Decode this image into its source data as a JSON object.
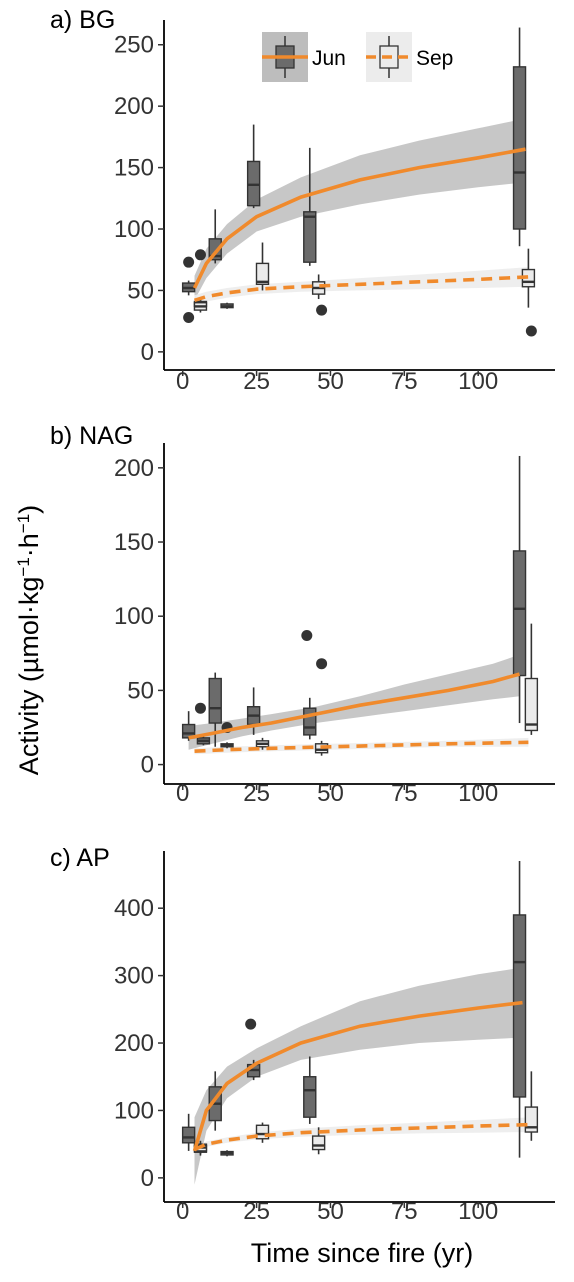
{
  "figure": {
    "ylabel": "Activity (µmol·kg⁻¹·h⁻¹)",
    "xlabel": "Time since fire (yr)"
  },
  "legend": {
    "items": [
      {
        "label": "Jun",
        "line_style": "solid",
        "box_fill": "#6b6b6b"
      },
      {
        "label": "Sep",
        "line_style": "dashed",
        "box_fill": "#ebebeb"
      }
    ]
  },
  "colors": {
    "fit_line": "#f08a2c",
    "jun_box_fill": "#6b6b6b",
    "sep_box_fill": "#ebebeb",
    "jun_band": "#bdbdbd",
    "sep_band": "#ececec",
    "outlier": "#333333",
    "box_edge": "#333333"
  },
  "chart_data": [
    {
      "type": "box",
      "panel_label": "a) BG",
      "title": "a) BG",
      "xlabel": "",
      "ylabel": "Activity (µmol·kg⁻¹·h⁻¹)",
      "xlim": [
        -6,
        126
      ],
      "ylim": [
        -5,
        262
      ],
      "x_ticks": [
        0,
        25,
        50,
        75,
        100
      ],
      "y_ticks": [
        0,
        50,
        100,
        150,
        200,
        250
      ],
      "grid": false,
      "legend_position": "top-center",
      "series": [
        {
          "name": "Jun",
          "line": "solid",
          "boxes": [
            {
              "x": 2,
              "low": 46,
              "q1": 49,
              "median": 52,
              "q3": 56,
              "high": 58
            },
            {
              "x": 6,
              "low": 34,
              "q1": 37,
              "median": 38,
              "q3": 41,
              "high": 43
            },
            {
              "x": 11,
              "low": 72,
              "q1": 75,
              "median": 78,
              "q3": 92,
              "high": 116
            },
            {
              "x": 15,
              "low": 35,
              "q1": 36,
              "median": 37,
              "q3": 39,
              "high": 40
            },
            {
              "x": 24,
              "low": 117,
              "q1": 119,
              "median": 136,
              "q3": 155,
              "high": 185
            },
            {
              "x": 43,
              "low": 70,
              "q1": 73,
              "median": 110,
              "q3": 114,
              "high": 166
            },
            {
              "x": 114,
              "low": 86,
              "q1": 100,
              "median": 146,
              "q3": 232,
              "high": 264
            }
          ],
          "outliers": [
            {
              "x": 2,
              "y": 73
            },
            {
              "x": 6,
              "y": 79
            },
            {
              "x": 2,
              "y": 28
            }
          ],
          "fit": {
            "x": [
              4,
              8,
              15,
              25,
              40,
              60,
              80,
              100,
              116
            ],
            "y": [
              52,
              72,
              92,
              110,
              126,
              140,
              150,
              158,
              165
            ],
            "lower": [
              42,
              60,
              80,
              98,
              110,
              120,
              128,
              134,
              138
            ],
            "upper": [
              62,
              84,
              104,
              124,
              142,
              160,
              172,
              182,
              190
            ]
          }
        },
        {
          "name": "Sep",
          "line": "dashed",
          "boxes": [
            {
              "x": 6,
              "low": 32,
              "q1": 34,
              "median": 37,
              "q3": 40,
              "high": 43
            },
            {
              "x": 27,
              "low": 50,
              "q1": 55,
              "median": 57,
              "q3": 72,
              "high": 89
            },
            {
              "x": 46,
              "low": 43,
              "q1": 47,
              "median": 52,
              "q3": 57,
              "high": 63
            },
            {
              "x": 117,
              "low": 36,
              "q1": 53,
              "median": 57,
              "q3": 67,
              "high": 84
            }
          ],
          "outliers": [
            {
              "x": 47,
              "y": 34
            },
            {
              "x": 118,
              "y": 17
            }
          ],
          "fit": {
            "x": [
              4,
              8,
              15,
              25,
              40,
              60,
              80,
              100,
              117
            ],
            "y": [
              42,
              45,
              48,
              51,
              53,
              55,
              57,
              59,
              61
            ],
            "lower": [
              38,
              41,
              44,
              47,
              49,
              50,
              51,
              52,
              53
            ],
            "upper": [
              46,
              49,
              52,
              55,
              57,
              60,
              63,
              66,
              69
            ]
          }
        }
      ]
    },
    {
      "type": "box",
      "panel_label": "b) NAG",
      "title": "b) NAG",
      "xlabel": "",
      "ylabel": "Activity (µmol·kg⁻¹·h⁻¹)",
      "xlim": [
        -6,
        126
      ],
      "ylim": [
        -5,
        210
      ],
      "x_ticks": [
        0,
        25,
        50,
        75,
        100
      ],
      "y_ticks": [
        0,
        50,
        100,
        150,
        200
      ],
      "grid": false,
      "series": [
        {
          "name": "Jun",
          "line": "solid",
          "boxes": [
            {
              "x": 2,
              "low": 16,
              "q1": 18,
              "median": 21,
              "q3": 27,
              "high": 36
            },
            {
              "x": 7,
              "low": 13,
              "q1": 14,
              "median": 16,
              "q3": 18,
              "high": 20
            },
            {
              "x": 11,
              "low": 12,
              "q1": 28,
              "median": 38,
              "q3": 58,
              "high": 62
            },
            {
              "x": 15,
              "low": 11,
              "q1": 12,
              "median": 13,
              "q3": 14,
              "high": 15
            },
            {
              "x": 24,
              "low": 20,
              "q1": 27,
              "median": 33,
              "q3": 39,
              "high": 52
            },
            {
              "x": 43,
              "low": 17,
              "q1": 20,
              "median": 25,
              "q3": 38,
              "high": 45
            },
            {
              "x": 114,
              "low": 28,
              "q1": 60,
              "median": 105,
              "q3": 144,
              "high": 208
            }
          ],
          "outliers": [
            {
              "x": 6,
              "y": 38
            },
            {
              "x": 15,
              "y": 25
            },
            {
              "x": 42,
              "y": 87
            },
            {
              "x": 47,
              "y": 68
            }
          ],
          "fit": {
            "x": [
              2,
              10,
              20,
              30,
              45,
              60,
              75,
              90,
              105,
              114
            ],
            "y": [
              18,
              21,
              25,
              28,
              34,
              40,
              45,
              50,
              56,
              61
            ],
            "lower": [
              10,
              14,
              19,
              23,
              28,
              32,
              36,
              40,
              44,
              46
            ],
            "upper": [
              26,
              28,
              31,
              34,
              39,
              46,
              54,
              61,
              68,
              74
            ]
          }
        },
        {
          "name": "Sep",
          "line": "dashed",
          "boxes": [
            {
              "x": 27,
              "low": 10,
              "q1": 12,
              "median": 14,
              "q3": 16,
              "high": 18
            },
            {
              "x": 47,
              "low": 6,
              "q1": 8,
              "median": 10,
              "q3": 14,
              "high": 16
            },
            {
              "x": 118,
              "low": 20,
              "q1": 23,
              "median": 27,
              "q3": 58,
              "high": 95
            }
          ],
          "outliers": [],
          "fit": {
            "x": [
              4,
              15,
              30,
              50,
              70,
              90,
              117
            ],
            "y": [
              9,
              10,
              11,
              12,
              13,
              14,
              15
            ],
            "lower": [
              7,
              8,
              9,
              10,
              11,
              12,
              12
            ],
            "upper": [
              11,
              12,
              13,
              14,
              15,
              16,
              18
            ]
          }
        }
      ]
    },
    {
      "type": "box",
      "panel_label": "c) AP",
      "title": "c) AP",
      "xlabel": "Time since fire (yr)",
      "ylabel": "Activity (µmol·kg⁻¹·h⁻¹)",
      "xlim": [
        -6,
        126
      ],
      "ylim": [
        -18,
        470
      ],
      "x_ticks": [
        0,
        25,
        50,
        75,
        100
      ],
      "y_ticks": [
        0,
        100,
        200,
        300,
        400
      ],
      "grid": false,
      "series": [
        {
          "name": "Jun",
          "line": "solid",
          "boxes": [
            {
              "x": 2,
              "low": 40,
              "q1": 52,
              "median": 60,
              "q3": 75,
              "high": 95
            },
            {
              "x": 6,
              "low": 33,
              "q1": 38,
              "median": 43,
              "q3": 50,
              "high": 55
            },
            {
              "x": 11,
              "low": 70,
              "q1": 85,
              "median": 110,
              "q3": 135,
              "high": 158
            },
            {
              "x": 15,
              "low": 32,
              "q1": 34,
              "median": 37,
              "q3": 39,
              "high": 41
            },
            {
              "x": 24,
              "low": 145,
              "q1": 150,
              "median": 160,
              "q3": 168,
              "high": 175
            },
            {
              "x": 43,
              "low": 80,
              "q1": 90,
              "median": 130,
              "q3": 150,
              "high": 180
            },
            {
              "x": 114,
              "low": 30,
              "q1": 120,
              "median": 320,
              "q3": 390,
              "high": 470
            }
          ],
          "outliers": [
            {
              "x": 23,
              "y": 228
            }
          ],
          "fit": {
            "x": [
              4,
              8,
              15,
              25,
              40,
              60,
              80,
              100,
              115
            ],
            "y": [
              40,
              100,
              140,
              170,
              200,
              225,
              240,
              252,
              260
            ],
            "lower": [
              -10,
              70,
              118,
              150,
              175,
              190,
              200,
              205,
              208
            ],
            "upper": [
              90,
              130,
              165,
              192,
              225,
              262,
              285,
              302,
              312
            ]
          }
        },
        {
          "name": "Sep",
          "line": "dashed",
          "boxes": [
            {
              "x": 6,
              "low": 35,
              "q1": 40,
              "median": 45,
              "q3": 48,
              "high": 52
            },
            {
              "x": 27,
              "low": 52,
              "q1": 58,
              "median": 65,
              "q3": 78,
              "high": 82
            },
            {
              "x": 46,
              "low": 35,
              "q1": 42,
              "median": 48,
              "q3": 62,
              "high": 75
            },
            {
              "x": 118,
              "low": 55,
              "q1": 68,
              "median": 75,
              "q3": 105,
              "high": 158
            }
          ],
          "outliers": [],
          "fit": {
            "x": [
              4,
              8,
              15,
              25,
              40,
              60,
              80,
              100,
              118
            ],
            "y": [
              42,
              50,
              56,
              62,
              67,
              71,
              74,
              77,
              79
            ],
            "lower": [
              38,
              46,
              52,
              57,
              61,
              64,
              66,
              67,
              68
            ],
            "upper": [
              46,
              54,
              60,
              67,
              73,
              78,
              82,
              86,
              90
            ]
          }
        }
      ]
    }
  ]
}
